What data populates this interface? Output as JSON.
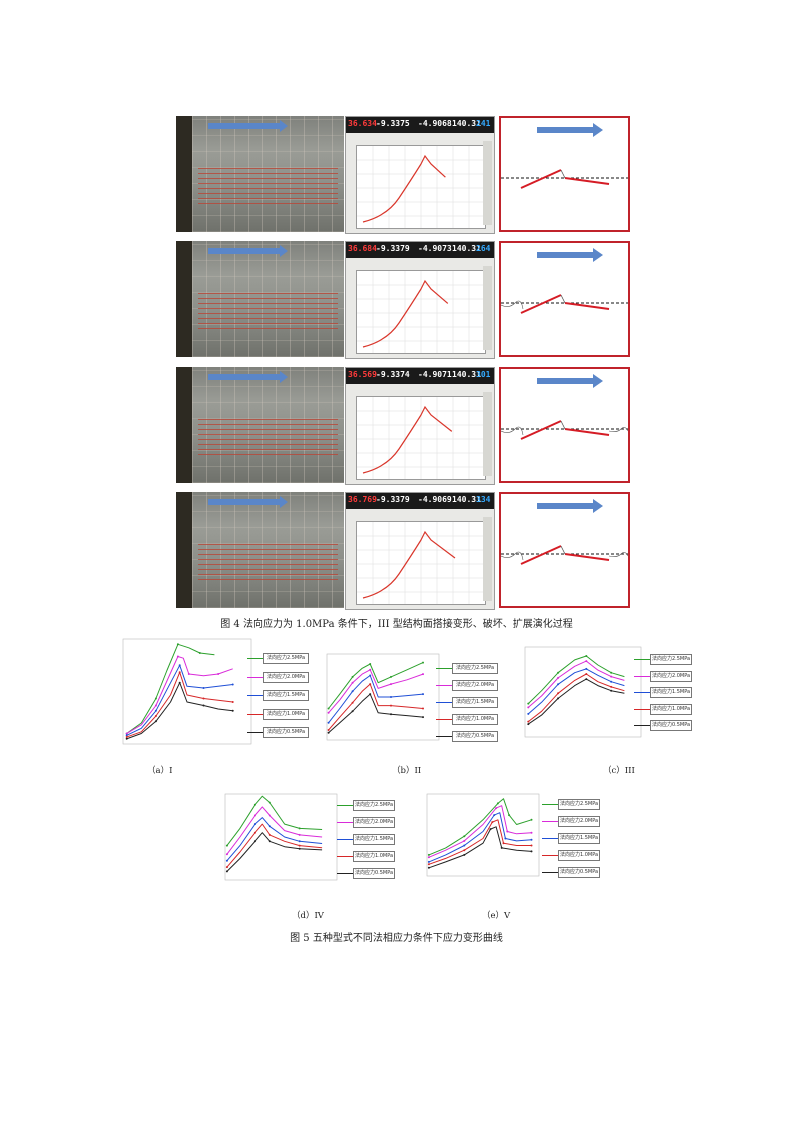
{
  "figure4": {
    "caption": "图 4 法向应力为 1.0MPa 条件下，III 型结构面搭接变形、破坏、扩展演化过程",
    "rows": [
      {
        "readouts": [
          "36.634",
          "-9.3375",
          "-4.9068",
          "140.31",
          "241"
        ]
      },
      {
        "readouts": [
          "36.684",
          "-9.3379",
          "-4.9073",
          "140.31",
          "264"
        ]
      },
      {
        "readouts": [
          "36.569",
          "-9.3374",
          "-4.9071",
          "140.31",
          "301"
        ]
      },
      {
        "readouts": [
          "36.769",
          "-9.3379",
          "-4.9069",
          "140.31",
          "334"
        ]
      }
    ]
  },
  "figure5": {
    "caption": "图 5 五种型式不同法相应力条件下应力变形曲线",
    "panels": [
      {
        "label": "（a）I",
        "legend": [
          "法向应力2.5MPa",
          "法向应力2.0MPa",
          "法向应力1.5MPa",
          "法向应力1.0MPa",
          "法向应力0.5MPa"
        ]
      },
      {
        "label": "（b）II",
        "legend": [
          "法向应力2.5MPa",
          "法向应力2.0MPa",
          "法向应力1.5MPa",
          "法向应力1.0MPa",
          "法向应力0.5MPa"
        ]
      },
      {
        "label": "（c）III",
        "legend": [
          "法向应力2.5MPa",
          "法向应力2.0MPa",
          "法向应力1.5MPa",
          "法向应力1.0MPa",
          "法向应力0.5MPa"
        ]
      },
      {
        "label": "（d）IV",
        "legend": [
          "法向应力2.5MPa",
          "法向应力2.0MPa",
          "法向应力1.5MPa",
          "法向应力1.0MPa",
          "法向应力0.5MPa"
        ]
      },
      {
        "label": "（e）V",
        "legend": [
          "法向应力2.5MPa",
          "法向应力2.0MPa",
          "法向应力1.5MPa",
          "法向应力1.0MPa",
          "法向应力0.5MPa"
        ]
      }
    ]
  },
  "colors": {
    "s25": "#2ca02c",
    "s20": "#d92bd9",
    "s15": "#1f4fd6",
    "s10": "#d62728",
    "s05": "#222222",
    "frame": "#c0232b",
    "arrow": "#5a86c9"
  },
  "chart_data": [
    {
      "type": "line",
      "ylim": [
        0,
        3
      ],
      "xlim": [
        0,
        3.5
      ],
      "series": [
        {
          "name": "法向应力2.5MPa",
          "color": "#2ca02c",
          "x": [
            0.1,
            0.5,
            0.9,
            1.2,
            1.5,
            1.8,
            2.1,
            2.5
          ],
          "values": [
            0.3,
            0.6,
            1.3,
            2.1,
            2.85,
            2.75,
            2.6,
            2.55
          ]
        },
        {
          "name": "法向应力2.0MPa",
          "color": "#d92bd9",
          "x": [
            0.1,
            0.5,
            0.9,
            1.2,
            1.5,
            1.65,
            1.8,
            2.2,
            2.6,
            3.0
          ],
          "values": [
            0.3,
            0.55,
            1.1,
            1.8,
            2.5,
            2.45,
            2.0,
            1.95,
            2.0,
            2.15
          ]
        },
        {
          "name": "法向应力1.5MPa",
          "color": "#1f4fd6",
          "x": [
            0.1,
            0.5,
            0.9,
            1.2,
            1.55,
            1.75,
            2.2,
            2.6,
            3.0
          ],
          "values": [
            0.25,
            0.45,
            0.95,
            1.55,
            2.25,
            1.65,
            1.6,
            1.65,
            1.7
          ]
        },
        {
          "name": "法向应力1.0MPa",
          "color": "#d62728",
          "x": [
            0.1,
            0.5,
            0.9,
            1.3,
            1.55,
            1.75,
            2.2,
            2.6,
            3.0
          ],
          "values": [
            0.2,
            0.35,
            0.8,
            1.4,
            2.05,
            1.4,
            1.3,
            1.25,
            1.2
          ]
        },
        {
          "name": "法向应力0.5MPa",
          "color": "#222222",
          "x": [
            0.1,
            0.5,
            0.9,
            1.3,
            1.55,
            1.75,
            2.2,
            2.6,
            3.0
          ],
          "values": [
            0.15,
            0.3,
            0.65,
            1.2,
            1.75,
            1.2,
            1.1,
            1.0,
            0.95
          ]
        }
      ]
    },
    {
      "type": "line",
      "ylim": [
        0,
        3
      ],
      "xlim": [
        0,
        3.5
      ],
      "series": [
        {
          "name": "法向应力2.5MPa",
          "color": "#2ca02c",
          "x": [
            0.05,
            0.4,
            0.8,
            1.1,
            1.35,
            1.6,
            2.0,
            2.5,
            3.0
          ],
          "values": [
            1.1,
            1.6,
            2.2,
            2.5,
            2.65,
            2.0,
            2.2,
            2.45,
            2.7
          ]
        },
        {
          "name": "法向应力2.0MPa",
          "color": "#d92bd9",
          "x": [
            0.05,
            0.4,
            0.8,
            1.1,
            1.35,
            1.6,
            2.0,
            2.5,
            3.0
          ],
          "values": [
            0.95,
            1.4,
            2.0,
            2.3,
            2.45,
            1.8,
            1.95,
            2.1,
            2.3
          ]
        },
        {
          "name": "法向应力1.5MPa",
          "color": "#1f4fd6",
          "x": [
            0.05,
            0.4,
            0.8,
            1.1,
            1.35,
            1.6,
            2.0,
            2.5,
            3.0
          ],
          "values": [
            0.6,
            1.1,
            1.7,
            2.05,
            2.25,
            1.5,
            1.5,
            1.55,
            1.6
          ]
        },
        {
          "name": "法向应力1.0MPa",
          "color": "#d62728",
          "x": [
            0.05,
            0.4,
            0.8,
            1.1,
            1.35,
            1.6,
            2.0,
            2.5,
            3.0
          ],
          "values": [
            0.35,
            0.8,
            1.3,
            1.7,
            1.95,
            1.2,
            1.2,
            1.15,
            1.1
          ]
        },
        {
          "name": "法向应力0.5MPa",
          "color": "#222222",
          "x": [
            0.05,
            0.4,
            0.8,
            1.1,
            1.35,
            1.6,
            2.0,
            2.5,
            3.0
          ],
          "values": [
            0.25,
            0.6,
            1.0,
            1.35,
            1.6,
            0.95,
            0.9,
            0.85,
            0.8
          ]
        }
      ]
    },
    {
      "type": "line",
      "ylim": [
        0,
        3.5
      ],
      "xlim": [
        0,
        3.5
      ],
      "series": [
        {
          "name": "法向应力2.5MPa",
          "color": "#2ca02c",
          "x": [
            0.1,
            0.5,
            1.0,
            1.5,
            1.85,
            2.2,
            2.6,
            3.0
          ],
          "values": [
            1.3,
            1.8,
            2.5,
            3.0,
            3.15,
            2.8,
            2.5,
            2.35
          ]
        },
        {
          "name": "法向应力2.0MPa",
          "color": "#d92bd9",
          "x": [
            0.1,
            0.5,
            1.0,
            1.5,
            1.85,
            2.2,
            2.6,
            3.0
          ],
          "values": [
            1.15,
            1.6,
            2.3,
            2.75,
            2.95,
            2.6,
            2.35,
            2.2
          ]
        },
        {
          "name": "法向应力1.5MPa",
          "color": "#1f4fd6",
          "x": [
            0.1,
            0.5,
            1.0,
            1.5,
            1.85,
            2.2,
            2.6,
            3.0
          ],
          "values": [
            0.9,
            1.35,
            2.05,
            2.5,
            2.65,
            2.4,
            2.15,
            2.0
          ]
        },
        {
          "name": "法向应力1.0MPa",
          "color": "#d62728",
          "x": [
            0.1,
            0.5,
            1.0,
            1.5,
            1.85,
            2.2,
            2.6,
            3.0
          ],
          "values": [
            0.6,
            1.0,
            1.7,
            2.2,
            2.45,
            2.15,
            1.95,
            1.8
          ]
        },
        {
          "name": "法向应力0.5MPa",
          "color": "#222222",
          "x": [
            0.1,
            0.5,
            1.0,
            1.5,
            1.85,
            2.2,
            2.6,
            3.0
          ],
          "values": [
            0.5,
            0.85,
            1.5,
            2.0,
            2.25,
            2.0,
            1.8,
            1.7
          ]
        }
      ]
    },
    {
      "type": "line",
      "ylim": [
        0,
        4
      ],
      "xlim": [
        0,
        3
      ],
      "series": [
        {
          "name": "法向应力2.5MPa",
          "color": "#2ca02c",
          "x": [
            0.05,
            0.4,
            0.8,
            1.0,
            1.2,
            1.6,
            2.0,
            2.6
          ],
          "values": [
            1.6,
            2.4,
            3.5,
            3.9,
            3.6,
            2.6,
            2.4,
            2.35
          ]
        },
        {
          "name": "法向应力2.0MPa",
          "color": "#d92bd9",
          "x": [
            0.05,
            0.4,
            0.8,
            1.0,
            1.2,
            1.6,
            2.0,
            2.6
          ],
          "values": [
            1.2,
            2.0,
            3.0,
            3.4,
            3.0,
            2.3,
            2.1,
            2.0
          ]
        },
        {
          "name": "法向应力1.5MPa",
          "color": "#1f4fd6",
          "x": [
            0.05,
            0.4,
            0.8,
            1.0,
            1.2,
            1.6,
            2.0,
            2.6
          ],
          "values": [
            0.9,
            1.6,
            2.6,
            2.9,
            2.5,
            2.0,
            1.8,
            1.7
          ]
        },
        {
          "name": "法向应力1.0MPa",
          "color": "#d62728",
          "x": [
            0.05,
            0.4,
            0.8,
            1.0,
            1.2,
            1.6,
            2.0,
            2.6
          ],
          "values": [
            0.6,
            1.3,
            2.2,
            2.6,
            2.1,
            1.8,
            1.6,
            1.5
          ]
        },
        {
          "name": "法向应力0.5MPa",
          "color": "#222222",
          "x": [
            0.05,
            0.4,
            0.8,
            1.0,
            1.2,
            1.6,
            2.0,
            2.6
          ],
          "values": [
            0.4,
            1.0,
            1.8,
            2.2,
            1.8,
            1.55,
            1.45,
            1.4
          ]
        }
      ]
    },
    {
      "type": "line",
      "ylim": [
        0,
        3.5
      ],
      "xlim": [
        0,
        3
      ],
      "series": [
        {
          "name": "法向应力2.5MPa",
          "color": "#2ca02c",
          "x": [
            0.05,
            0.5,
            1.0,
            1.5,
            1.9,
            2.05,
            2.2,
            2.4,
            2.8
          ],
          "values": [
            0.9,
            1.2,
            1.7,
            2.4,
            3.1,
            3.3,
            2.6,
            2.2,
            2.4
          ]
        },
        {
          "name": "法向应力2.0MPa",
          "color": "#d92bd9",
          "x": [
            0.05,
            0.5,
            1.0,
            1.5,
            1.85,
            2.0,
            2.15,
            2.4,
            2.8
          ],
          "values": [
            0.8,
            1.1,
            1.5,
            2.2,
            2.9,
            3.0,
            1.9,
            1.8,
            1.85
          ]
        },
        {
          "name": "法向应力1.5MPa",
          "color": "#1f4fd6",
          "x": [
            0.05,
            0.5,
            1.0,
            1.5,
            1.8,
            1.95,
            2.1,
            2.4,
            2.8
          ],
          "values": [
            0.6,
            0.9,
            1.3,
            1.9,
            2.6,
            2.7,
            1.6,
            1.5,
            1.55
          ]
        },
        {
          "name": "法向应力1.0MPa",
          "color": "#d62728",
          "x": [
            0.05,
            0.5,
            1.0,
            1.5,
            1.75,
            1.9,
            2.05,
            2.4,
            2.8
          ],
          "values": [
            0.5,
            0.75,
            1.1,
            1.6,
            2.3,
            2.4,
            1.4,
            1.3,
            1.3
          ]
        },
        {
          "name": "法向应力0.5MPa",
          "color": "#222222",
          "x": [
            0.05,
            0.5,
            1.0,
            1.5,
            1.7,
            1.85,
            2.0,
            2.4,
            2.8
          ],
          "values": [
            0.35,
            0.6,
            0.9,
            1.4,
            2.0,
            2.1,
            1.2,
            1.1,
            1.05
          ]
        }
      ]
    }
  ]
}
